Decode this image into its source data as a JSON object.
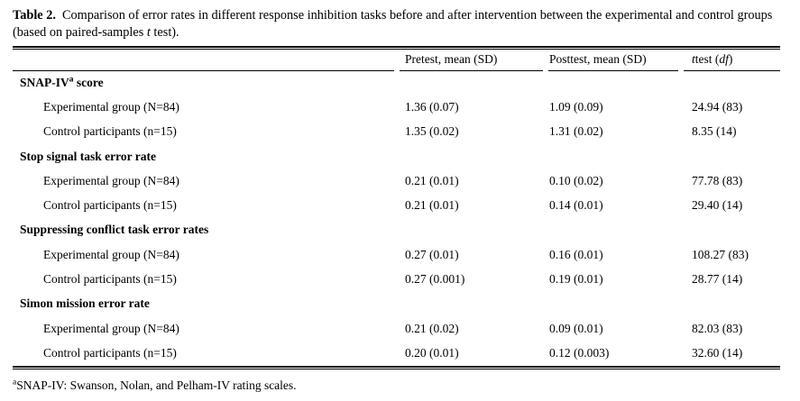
{
  "caption": {
    "label": "Table 2.",
    "body": "Comparison of error rates in different response inhibition tasks before and after intervention between the experimental and control groups (based on paired-samples ",
    "italic_t": "t",
    "tail": " test)."
  },
  "header": {
    "pretest": "Pretest, mean (SD)",
    "posttest": "Posttest, mean (SD)",
    "ttest_t": "t",
    "ttest_mid": " test (",
    "ttest_df": "df",
    "ttest_end": ")"
  },
  "sections": [
    {
      "title": "SNAP-IV",
      "title_sup": "a",
      "title_rest": " score",
      "rows": [
        {
          "label": "Experimental group (N=84)",
          "pretest": "1.36 (0.07)",
          "posttest": "1.09 (0.09)",
          "ttest": "24.94 (83)"
        },
        {
          "label": "Control participants (n=15)",
          "pretest": "1.35 (0.02)",
          "posttest": "1.31 (0.02)",
          "ttest": "8.35 (14)"
        }
      ]
    },
    {
      "title": "Stop signal task error rate",
      "title_sup": "",
      "title_rest": "",
      "rows": [
        {
          "label": "Experimental group (N=84)",
          "pretest": "0.21 (0.01)",
          "posttest": "0.10 (0.02)",
          "ttest": "77.78 (83)"
        },
        {
          "label": "Control participants (n=15)",
          "pretest": "0.21 (0.01)",
          "posttest": "0.14 (0.01)",
          "ttest": "29.40 (14)"
        }
      ]
    },
    {
      "title": "Suppressing conflict task error rates",
      "title_sup": "",
      "title_rest": "",
      "rows": [
        {
          "label": "Experimental group (N=84)",
          "pretest": "0.27 (0.01)",
          "posttest": "0.16 (0.01)",
          "ttest": "108.27 (83)"
        },
        {
          "label": "Control participants (n=15)",
          "pretest": "0.27 (0.001)",
          "posttest": "0.19 (0.01)",
          "ttest": "28.77 (14)"
        }
      ]
    },
    {
      "title": "Simon mission error rate",
      "title_sup": "",
      "title_rest": "",
      "rows": [
        {
          "label": "Experimental group (N=84)",
          "pretest": "0.21 (0.02)",
          "posttest": "0.09 (0.01)",
          "ttest": "82.03 (83)"
        },
        {
          "label": "Control participants (n=15)",
          "pretest": "0.20 (0.01)",
          "posttest": "0.12 (0.003)",
          "ttest": "32.60 (14)"
        }
      ]
    }
  ],
  "footnote": {
    "sup": "a",
    "text": "SNAP-IV: Swanson, Nolan, and Pelham-IV rating scales."
  },
  "colors": {
    "text": "#000000",
    "background": "#ffffff",
    "rule": "#000000"
  }
}
